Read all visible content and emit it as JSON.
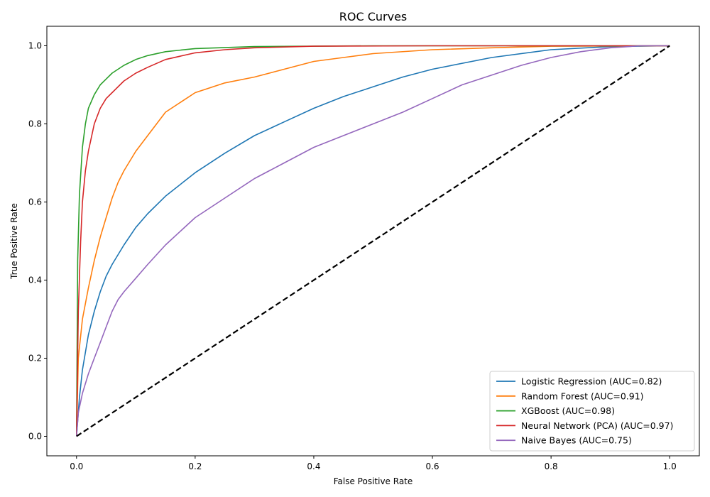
{
  "chart_data": {
    "type": "line",
    "title": "ROC Curves",
    "xlabel": "False Positive Rate",
    "ylabel": "True Positive Rate",
    "xlim": [
      -0.05,
      1.05
    ],
    "ylim": [
      -0.05,
      1.05
    ],
    "xticks": [
      0.0,
      0.2,
      0.4,
      0.6,
      0.8,
      1.0
    ],
    "yticks": [
      0.0,
      0.2,
      0.4,
      0.6,
      0.8,
      1.0
    ],
    "xtick_labels": [
      "0.0",
      "0.2",
      "0.4",
      "0.6",
      "0.8",
      "1.0"
    ],
    "ytick_labels": [
      "0.0",
      "0.2",
      "0.4",
      "0.6",
      "0.8",
      "1.0"
    ],
    "grid": false,
    "legend_position": "lower-right",
    "series": [
      {
        "name": "Logistic Regression (AUC=0.82)",
        "color": "#1f77b4",
        "x": [
          0.0,
          0.005,
          0.01,
          0.02,
          0.03,
          0.04,
          0.05,
          0.06,
          0.08,
          0.1,
          0.12,
          0.15,
          0.2,
          0.25,
          0.3,
          0.35,
          0.4,
          0.45,
          0.5,
          0.55,
          0.6,
          0.7,
          0.8,
          0.9,
          1.0
        ],
        "y": [
          0.0,
          0.1,
          0.17,
          0.26,
          0.32,
          0.37,
          0.41,
          0.44,
          0.49,
          0.535,
          0.57,
          0.615,
          0.675,
          0.725,
          0.77,
          0.805,
          0.84,
          0.87,
          0.895,
          0.92,
          0.94,
          0.97,
          0.99,
          0.998,
          1.0
        ]
      },
      {
        "name": "Random Forest (AUC=0.91)",
        "color": "#ff7f0e",
        "x": [
          0.0,
          0.003,
          0.01,
          0.02,
          0.03,
          0.04,
          0.05,
          0.06,
          0.07,
          0.08,
          0.1,
          0.12,
          0.15,
          0.2,
          0.25,
          0.3,
          0.35,
          0.4,
          0.45,
          0.5,
          0.6,
          0.7,
          0.8,
          1.0
        ],
        "y": [
          0.0,
          0.2,
          0.3,
          0.38,
          0.45,
          0.51,
          0.56,
          0.61,
          0.65,
          0.68,
          0.73,
          0.77,
          0.83,
          0.88,
          0.905,
          0.92,
          0.94,
          0.96,
          0.97,
          0.98,
          0.99,
          0.995,
          0.999,
          1.0
        ]
      },
      {
        "name": "XGBoost (AUC=0.98)",
        "color": "#2ca02c",
        "x": [
          0.0,
          0.002,
          0.005,
          0.01,
          0.015,
          0.02,
          0.03,
          0.04,
          0.05,
          0.06,
          0.08,
          0.1,
          0.12,
          0.15,
          0.2,
          0.3,
          0.5,
          1.0
        ],
        "y": [
          0.0,
          0.45,
          0.62,
          0.74,
          0.8,
          0.84,
          0.875,
          0.9,
          0.915,
          0.93,
          0.95,
          0.965,
          0.975,
          0.985,
          0.993,
          0.998,
          1.0,
          1.0
        ]
      },
      {
        "name": "Neural Network (PCA) (AUC=0.97)",
        "color": "#d62728",
        "x": [
          0.0,
          0.003,
          0.007,
          0.01,
          0.015,
          0.02,
          0.03,
          0.04,
          0.05,
          0.06,
          0.08,
          0.1,
          0.12,
          0.15,
          0.2,
          0.25,
          0.3,
          0.4,
          0.6,
          1.0
        ],
        "y": [
          0.0,
          0.32,
          0.5,
          0.6,
          0.68,
          0.73,
          0.8,
          0.84,
          0.865,
          0.88,
          0.91,
          0.93,
          0.945,
          0.965,
          0.982,
          0.99,
          0.995,
          0.999,
          1.0,
          1.0
        ]
      },
      {
        "name": "Naive Bayes (AUC=0.75)",
        "color": "#9467bd",
        "x": [
          0.0,
          0.003,
          0.01,
          0.02,
          0.03,
          0.04,
          0.05,
          0.06,
          0.07,
          0.08,
          0.1,
          0.12,
          0.15,
          0.2,
          0.25,
          0.3,
          0.35,
          0.4,
          0.45,
          0.5,
          0.55,
          0.6,
          0.65,
          0.7,
          0.75,
          0.8,
          0.85,
          0.9,
          0.95,
          1.0
        ],
        "y": [
          0.0,
          0.06,
          0.11,
          0.16,
          0.2,
          0.24,
          0.28,
          0.32,
          0.35,
          0.37,
          0.405,
          0.44,
          0.49,
          0.56,
          0.61,
          0.66,
          0.7,
          0.74,
          0.77,
          0.8,
          0.83,
          0.865,
          0.9,
          0.925,
          0.95,
          0.97,
          0.985,
          0.995,
          1.0,
          1.0
        ]
      },
      {
        "name": "",
        "color": "#000000",
        "dashed": true,
        "x": [
          0.0,
          1.0
        ],
        "y": [
          0.0,
          1.0
        ]
      }
    ]
  }
}
